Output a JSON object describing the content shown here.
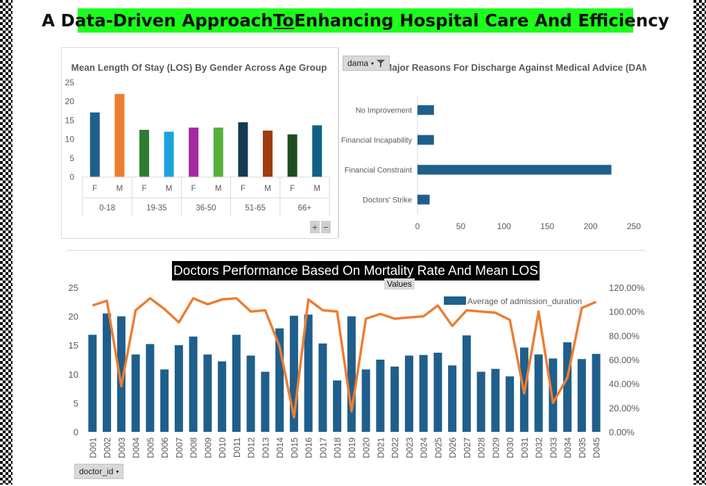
{
  "page_title_parts": [
    "A Data-Driven Approach ",
    "To",
    " Enhancing Hospital Care And Efficiency"
  ],
  "chart_data": [
    {
      "type": "bar",
      "title": "Mean Length Of Stay (LOS) By Gender Across Age Group",
      "groups": [
        "0-18",
        "19-35",
        "36-50",
        "51-65",
        "66+"
      ],
      "categories": [
        "F",
        "M",
        "F",
        "M",
        "F",
        "M",
        "F",
        "M",
        "F",
        "M"
      ],
      "values": [
        17.1,
        22,
        12.5,
        12,
        13.1,
        13.1,
        14.5,
        12.3,
        11.3,
        13.7
      ],
      "colors": [
        "#1f5f8b",
        "#ed7d31",
        "#2e7d32",
        "#1ca3dc",
        "#a52a9e",
        "#55b13b",
        "#143a52",
        "#9c3d0f",
        "#1d4d1e",
        "#0f6189"
      ],
      "ylim": [
        0,
        25
      ],
      "yticks": [
        "0",
        "5",
        "10",
        "15",
        "20",
        "25"
      ]
    },
    {
      "type": "bar",
      "orientation": "horizontal",
      "title": "Major Reasons For Discharge Against Medical Advice (DAMA)",
      "categories": [
        "No Improvement",
        "Financial Incapability",
        "Financial Constraint",
        "Doctors' Strike"
      ],
      "values": [
        19,
        19,
        224,
        14
      ],
      "color": "#1f5f8b",
      "xlim": [
        0,
        250
      ],
      "xticks": [
        "0",
        "50",
        "100",
        "150",
        "200",
        "250"
      ]
    },
    {
      "type": "bar",
      "title": "Doctors Performance Based On Mortality Rate And Mean LOS",
      "categories": [
        "D001",
        "D002",
        "D003",
        "D004",
        "D005",
        "D006",
        "D007",
        "D008",
        "D009",
        "D010",
        "D011",
        "D012",
        "D013",
        "D014",
        "D015",
        "D016",
        "D017",
        "D018",
        "D019",
        "D020",
        "D021",
        "D022",
        "D023",
        "D024",
        "D025",
        "D026",
        "D027",
        "D028",
        "D029",
        "D030",
        "D031",
        "D032",
        "D033",
        "D034",
        "D035",
        "D045"
      ],
      "series": [
        {
          "name": "Average of admission_duration",
          "type": "bar",
          "color": "#1f5f8b",
          "values": [
            16.8,
            20.5,
            20,
            13.4,
            15.2,
            10.8,
            15,
            16.5,
            13.4,
            12.2,
            16.8,
            13.2,
            10.4,
            17.9,
            20.1,
            20.3,
            15.3,
            8.9,
            20,
            10.8,
            12.5,
            11.3,
            13.2,
            13.3,
            13.7,
            11.5,
            16.7,
            10.4,
            10.9,
            9.6,
            14.6,
            13.4,
            12.7,
            15.5,
            12.6,
            13.5
          ]
        },
        {
          "type": "line",
          "axis": "secondary",
          "color": "#ed7d31",
          "values": [
            1.05,
            1.09,
            0.38,
            1.01,
            1.11,
            1.02,
            0.91,
            1.11,
            1.06,
            1.1,
            1.11,
            1.0,
            1.01,
            0.71,
            0.12,
            1.1,
            1.01,
            1.0,
            0.17,
            0.94,
            0.98,
            0.94,
            0.95,
            0.96,
            1.05,
            0.88,
            1.01,
            1.0,
            0.99,
            0.93,
            0.32,
            1.0,
            0.24,
            0.45,
            1.03,
            1.08
          ]
        }
      ],
      "ylim": [
        0,
        25
      ],
      "yticks": [
        "0",
        "5",
        "10",
        "15",
        "20",
        "25"
      ],
      "y2lim": [
        0,
        1.2
      ],
      "y2ticks": [
        "0.00%",
        "20.00%",
        "40.00%",
        "60.00%",
        "80.00%",
        "100.00%",
        "120.00%"
      ],
      "values_label": "Values"
    }
  ],
  "filters": {
    "dama_label": "dama",
    "doctor_label": "doctor_id"
  },
  "zoom": {
    "expand": "+",
    "collapse": "−"
  },
  "icons": {
    "dropdown": "dropdown-arrow-icon",
    "filter": "funnel-icon"
  }
}
